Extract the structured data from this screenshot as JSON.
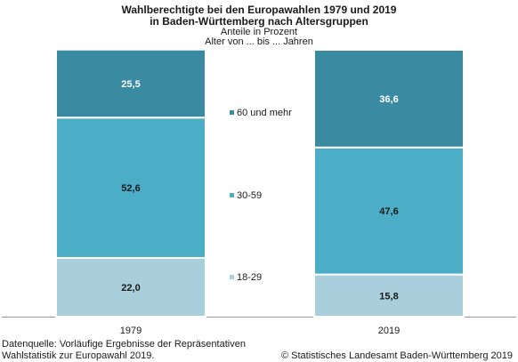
{
  "title_line1": "Wahlberechtigte bei den Europawahlen 1979 und 2019",
  "title_line2": "in Baden-Württemberg nach Altersgruppen",
  "subtitle_line1": "Anteile in Prozent",
  "subtitle_line2": "Alter von ... bis ... Jahren",
  "footer": {
    "source_line1": "Datenquelle: Vorläufige Ergebnisse der Repräsentativen",
    "source_line2": "Wahlstatistik zur Europawahl 2019.",
    "copyright": "© Statistisches Landesamt Baden-Württemberg 2019"
  },
  "chart_data": {
    "type": "bar",
    "stacked": true,
    "categories": [
      "1979",
      "2019"
    ],
    "series": [
      {
        "name": "18-29",
        "values": [
          22.0,
          15.8
        ],
        "labels": [
          "22,0",
          "15,8"
        ],
        "color": "#a9cfdc"
      },
      {
        "name": "30-59",
        "values": [
          52.6,
          47.6
        ],
        "labels": [
          "52,6",
          "47,6"
        ],
        "color": "#4cadc6"
      },
      {
        "name": "60 und mehr",
        "values": [
          25.5,
          36.6
        ],
        "labels": [
          "25,5",
          "36,6"
        ],
        "color": "#3a8aa1"
      }
    ],
    "ylim": [
      0,
      100
    ],
    "legend_position": "center between bars"
  }
}
